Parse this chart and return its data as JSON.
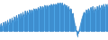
{
  "line_color": "#3a87c8",
  "fill_color": "#4da6e8",
  "background_color": "#ffffff",
  "figsize": [
    1.2,
    0.45
  ],
  "dpi": 100,
  "values": [
    8,
    14,
    6,
    16,
    8,
    18,
    10,
    20,
    12,
    22,
    14,
    24,
    16,
    26,
    18,
    28,
    20,
    30,
    22,
    32,
    24,
    34,
    26,
    36,
    28,
    36,
    30,
    38,
    32,
    38,
    34,
    40,
    36,
    40,
    36,
    42,
    38,
    44,
    38,
    44,
    40,
    46,
    40,
    46,
    42,
    46,
    44,
    48,
    44,
    48,
    46,
    48,
    46,
    50,
    48,
    50,
    46,
    50,
    44,
    48,
    42,
    46,
    40,
    44,
    36,
    40,
    30,
    32,
    20,
    10,
    2,
    -8,
    -2,
    6,
    14,
    22,
    28,
    34,
    30,
    38,
    32,
    40,
    34,
    42,
    36,
    44,
    34,
    42,
    36,
    44,
    38,
    46,
    38,
    46,
    40,
    48,
    40,
    48,
    42,
    48
  ],
  "ylim": [
    -15,
    55
  ]
}
